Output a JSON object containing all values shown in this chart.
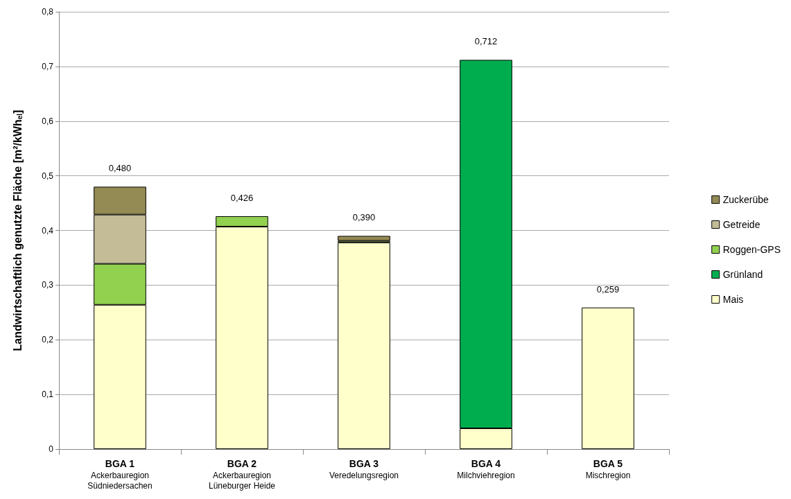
{
  "chart_data": {
    "type": "bar",
    "stacked": true,
    "ylabel": "Landwirtschaftlich genutzte Fläche [m²/kWh$_{el}$]",
    "categories": [
      "BGA 1\nAckerbauregion\nSüdniedersachen",
      "BGA 2\nAckerbauregion\nLüneburger Heide",
      "BGA 3\nVeredelungsregion",
      "BGA 4\nMilchviehregion",
      "BGA 5\nMischregion"
    ],
    "series": [
      {
        "name": "Mais",
        "color": "#ffffcc",
        "values": [
          0.264,
          0.407,
          0.378,
          0.038,
          0.259
        ]
      },
      {
        "name": "Grünland",
        "color": "#00ad4e",
        "values": [
          null,
          null,
          null,
          0.674,
          null
        ]
      },
      {
        "name": "Roggen-GPS",
        "color": "#92d050",
        "values": [
          0.075,
          0.019,
          0.003,
          null,
          null
        ]
      },
      {
        "name": "Getreide",
        "color": "#c4bc96",
        "values": [
          0.09,
          null,
          null,
          null,
          null
        ]
      },
      {
        "name": "Zuckerübe",
        "color": "#948a54",
        "values": [
          0.051,
          null,
          0.009,
          null,
          null
        ]
      }
    ],
    "totals": [
      "0,480",
      "0,426",
      "0,390",
      "0,712",
      "0,259"
    ],
    "ylim": [
      0,
      0.8
    ],
    "yticks": [
      0,
      {
        "value": 0.1,
        "label": "0,1"
      },
      {
        "value": 0.2,
        "label": "0,2"
      },
      {
        "value": 0.3,
        "label": "0,3"
      },
      {
        "value": 0.4,
        "label": "0,4"
      },
      {
        "value": 0.5,
        "label": "0,5"
      },
      {
        "value": 0.6,
        "label": "0,6"
      },
      {
        "value": 0.7,
        "label": "0,7"
      },
      {
        "value": 0.8,
        "label": "0,8"
      }
    ],
    "grid": "y",
    "legend": "right"
  }
}
